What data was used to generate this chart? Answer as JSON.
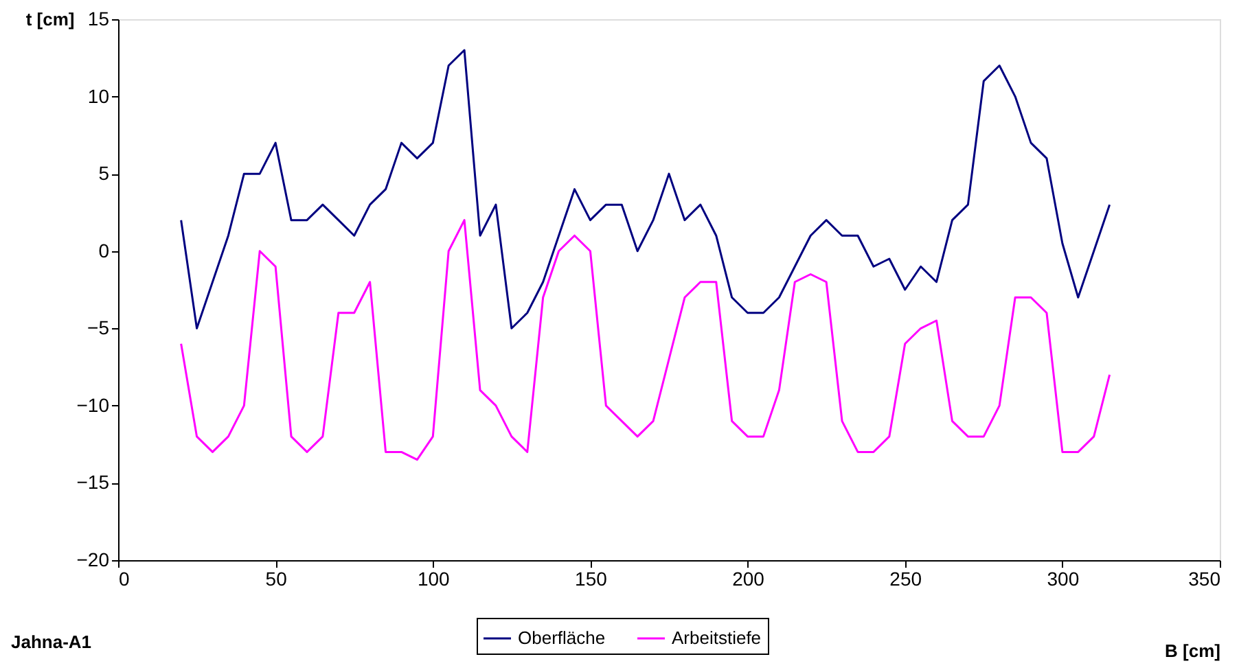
{
  "chart_data": {
    "type": "line",
    "xlabel": "B [cm]",
    "ylabel": "t [cm]",
    "annotations": [
      "Jahna-A1"
    ],
    "x": [
      20,
      25,
      30,
      35,
      40,
      45,
      50,
      55,
      60,
      65,
      70,
      75,
      80,
      85,
      90,
      95,
      100,
      105,
      110,
      115,
      120,
      125,
      130,
      135,
      140,
      145,
      150,
      155,
      160,
      165,
      170,
      175,
      180,
      185,
      190,
      195,
      200,
      205,
      210,
      215,
      220,
      225,
      230,
      235,
      240,
      245,
      250,
      255,
      260,
      265,
      270,
      275,
      280,
      285,
      290,
      295,
      300,
      305,
      310,
      315
    ],
    "series": [
      {
        "name": "Oberfläche",
        "color": "#000080",
        "values": [
          2,
          -5,
          -2,
          1,
          5,
          5,
          7,
          2,
          2,
          3,
          2,
          1,
          3,
          4,
          7,
          6,
          7,
          12,
          13,
          1,
          3,
          -5,
          -4,
          -2,
          1,
          4,
          2,
          3,
          3,
          0,
          2,
          5,
          2,
          3,
          1,
          -3,
          -4,
          -4,
          -3,
          -1,
          1,
          2,
          1,
          1,
          -1,
          -0.5,
          -2.5,
          -1,
          -2,
          2,
          3,
          11,
          12,
          10,
          7,
          6,
          0.5,
          -3,
          0,
          3
        ]
      },
      {
        "name": "Arbeitstiefe",
        "color": "#ff00ff",
        "values": [
          -6,
          -12,
          -13,
          -12,
          -10,
          0,
          -1,
          -12,
          -13,
          -12,
          -4,
          -4,
          -2,
          -13,
          -13,
          -13.5,
          -12,
          0,
          2,
          -9,
          -10,
          -12,
          -13,
          -3,
          0,
          1,
          0,
          -10,
          -11,
          -12,
          -11,
          -7,
          -3,
          -2,
          -2,
          -11,
          -12,
          -12,
          -9,
          -2,
          -1.5,
          -2,
          -11,
          -13,
          -13,
          -12,
          -6,
          -5,
          -4.5,
          -11,
          -12,
          -12,
          -10,
          -3,
          -3,
          -4,
          -13,
          -13,
          -12,
          -8
        ]
      }
    ],
    "xlim": [
      0,
      350
    ],
    "xticks": [
      0,
      50,
      100,
      150,
      200,
      250,
      300,
      350
    ],
    "ylim": [
      -20,
      15
    ],
    "yticks": [
      -20,
      -15,
      -10,
      -5,
      0,
      5,
      10,
      15
    ],
    "grid": false,
    "legend": "bottom",
    "marker": "none",
    "line_style": "solid"
  }
}
